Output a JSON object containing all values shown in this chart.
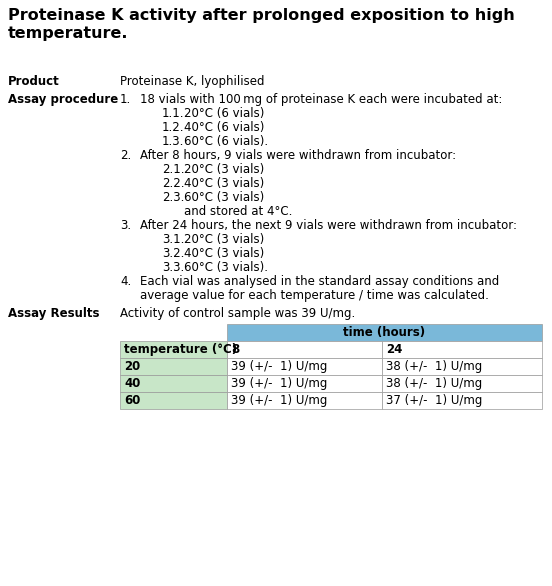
{
  "title_line1": "Proteinase K activity after prolonged exposition to high",
  "title_line2": "temperature.",
  "product_label": "Product",
  "product_value": "Proteinase K, lyophilised",
  "assay_label": "Assay procedure",
  "assay_items": [
    {
      "num": "1.",
      "indent": 1,
      "text": "18 vials with 100 mg of proteinase K each were incubated at:"
    },
    {
      "num": "1.1.",
      "indent": 2,
      "text": "20°C (6 vials)"
    },
    {
      "num": "1.2.",
      "indent": 2,
      "text": "40°C (6 vials)"
    },
    {
      "num": "1.3.",
      "indent": 2,
      "text": "60°C (6 vials)."
    },
    {
      "num": "2.",
      "indent": 1,
      "text": "After 8 hours, 9 vials were withdrawn from incubator:"
    },
    {
      "num": "2.1.",
      "indent": 2,
      "text": "20°C (3 vials)"
    },
    {
      "num": "2.2.",
      "indent": 2,
      "text": "40°C (3 vials)"
    },
    {
      "num": "2.3.",
      "indent": 2,
      "text": "60°C (3 vials)"
    },
    {
      "num": "",
      "indent": 2,
      "text": "and stored at 4°C."
    },
    {
      "num": "3.",
      "indent": 1,
      "text": "After 24 hours, the next 9 vials were withdrawn from incubator:"
    },
    {
      "num": "3.1.",
      "indent": 2,
      "text": "20°C (3 vials)"
    },
    {
      "num": "3.2.",
      "indent": 2,
      "text": "40°C (3 vials)"
    },
    {
      "num": "3.3.",
      "indent": 2,
      "text": "60°C (3 vials)."
    },
    {
      "num": "4.",
      "indent": 1,
      "text": "Each vial was analysed in the standard assay conditions and"
    },
    {
      "num": "",
      "indent": 1,
      "text": "average value for each temperature / time was calculated."
    }
  ],
  "results_label": "Assay Results",
  "results_intro": "Activity of control sample was 39 U/mg.",
  "table_header_top": "time (hours)",
  "table_col1_header": "temperature (°C)",
  "table_col2_header": "8",
  "table_col3_header": "24",
  "table_rows": [
    {
      "temp": "20",
      "h8": "39 (+/-  1) U/mg",
      "h24": "38 (+/-  1) U/mg"
    },
    {
      "temp": "40",
      "h8": "39 (+/-  1) U/mg",
      "h24": "38 (+/-  1) U/mg"
    },
    {
      "temp": "60",
      "h8": "39 (+/-  1) U/mg",
      "h24": "37 (+/-  1) U/mg"
    }
  ],
  "header_bg": "#7ab8d9",
  "subheader_bg": "#a8cfe0",
  "row_bg_white": "#ffffff",
  "row_bg_green": "#d4ecd4",
  "col1_bg": "#c8e6c8",
  "background": "#ffffff",
  "title_fontsize": 11.5,
  "body_fontsize": 8.5,
  "lh": 14
}
